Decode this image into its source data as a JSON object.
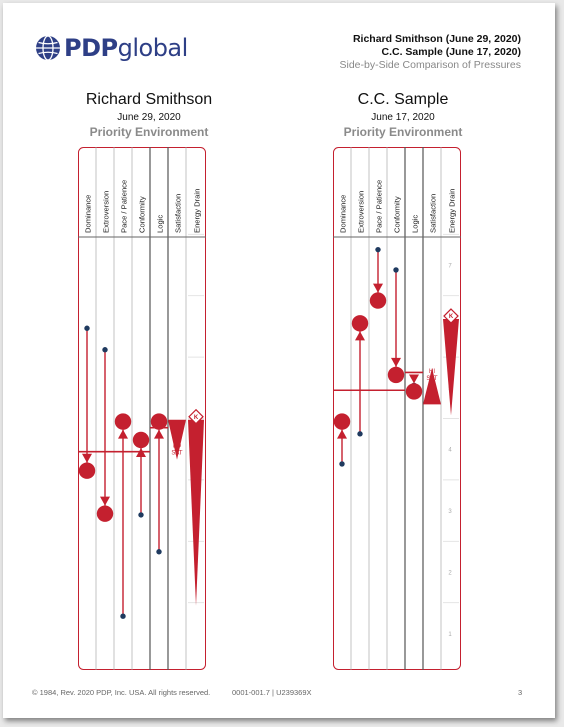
{
  "header": {
    "logo_text_bold": "PDP",
    "logo_text_light": "global",
    "line1": "Richard Smithson (June 29, 2020)",
    "line2": "C.C. Sample (June 17, 2020)",
    "line3": "Side-by-Side Comparison of Pressures"
  },
  "scale_labels": [
    "7",
    "6",
    "5",
    "4",
    "3",
    "2",
    "1"
  ],
  "profiles": [
    {
      "name": "Richard Smithson",
      "date": "June 29, 2020",
      "section": "Priority Environment",
      "columns": [
        "Dominance",
        "Extroversion",
        "Pace / Patience",
        "Conformity",
        "Logic",
        "Satisfaction",
        "Energy Drain"
      ],
      "show_scale": false,
      "mid_line": 3.96,
      "logic_line": 4.35,
      "traits": [
        {
          "name": "Dominance",
          "start": 5.97,
          "end": 3.65
        },
        {
          "name": "Extroversion",
          "start": 5.62,
          "end": 2.95
        },
        {
          "name": "Pace / Patience",
          "start": 1.28,
          "end": 4.45
        },
        {
          "name": "Conformity",
          "start": 2.93,
          "end": 4.15
        },
        {
          "name": "Logic",
          "start": 2.33,
          "end": 4.45
        }
      ],
      "satisfaction": {
        "label_top": "LO",
        "label_bottom": "SAT",
        "from": 4.48,
        "to": 3.83
      },
      "energy": {
        "label": "K",
        "top": 4.48,
        "bottom": 1.45
      }
    },
    {
      "name": "C.C. Sample",
      "date": "June 17, 2020",
      "section": "Priority Environment",
      "columns": [
        "Dominance",
        "Extroversion",
        "Pace / Patience",
        "Conformity",
        "Logic",
        "Satisfaction",
        "Energy Drain"
      ],
      "show_scale": true,
      "mid_line": 4.96,
      "logic_line": 5.25,
      "traits": [
        {
          "name": "Dominance",
          "start": 3.76,
          "end": 4.45
        },
        {
          "name": "Extroversion",
          "start": 4.25,
          "end": 6.05
        },
        {
          "name": "Pace / Patience",
          "start": 7.25,
          "end": 6.42
        },
        {
          "name": "Conformity",
          "start": 6.92,
          "end": 5.21
        },
        {
          "name": "Logic",
          "start": 5.04,
          "end": 4.94
        }
      ],
      "satisfaction": {
        "label_top": "HI",
        "label_bottom": "SAT",
        "from": 4.73,
        "to": 5.32
      },
      "energy": {
        "label": "K",
        "top": 6.12,
        "bottom": 4.55
      }
    }
  ],
  "footer": {
    "copyright": "© 1984, Rev. 2020 PDP, Inc. USA. All rights reserved.",
    "code": "0001-001.7 | U239369X",
    "page": "3"
  },
  "colors": {
    "accent": "#c4202f",
    "dot": "#1f3a5f",
    "brand": "#2e3f86"
  }
}
